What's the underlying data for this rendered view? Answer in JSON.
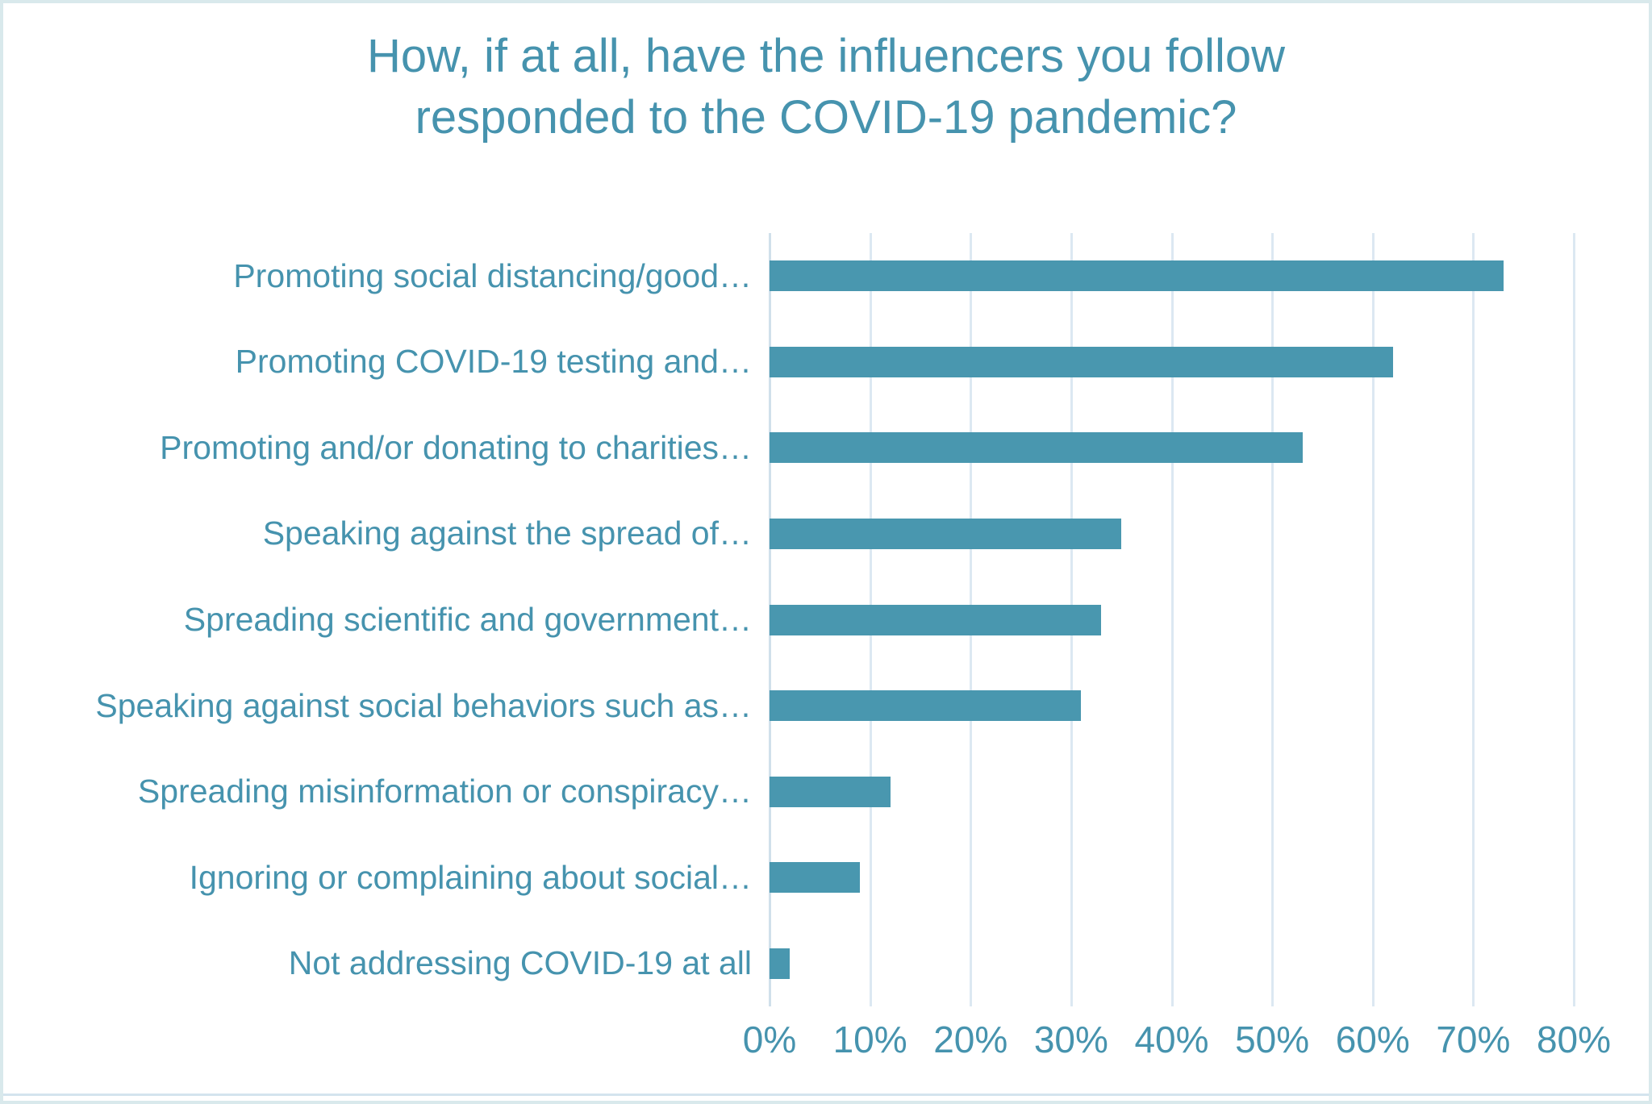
{
  "title": {
    "line1": "How, if at all, have the influencers you follow",
    "line2": "responded to the COVID-19 pandemic?"
  },
  "chart_data": {
    "type": "bar",
    "orientation": "horizontal",
    "title": "How, if at all, have the influencers you follow responded to the COVID-19 pandemic?",
    "categories": [
      "Promoting social distancing/good…",
      "Promoting COVID-19 testing and…",
      "Promoting and/or donating to charities…",
      "Speaking against the spread of…",
      "Spreading scientific and government…",
      "Speaking against social behaviors such as…",
      "Spreading misinformation or conspiracy…",
      "Ignoring or complaining about social…",
      "Not addressing COVID-19 at all"
    ],
    "values": [
      73,
      62,
      53,
      35,
      33,
      31,
      12,
      9,
      2
    ],
    "unit": "%",
    "xlabel": "",
    "ylabel": "",
    "xlim": [
      0,
      80
    ],
    "x_ticks": [
      "0%",
      "10%",
      "20%",
      "30%",
      "40%",
      "50%",
      "60%",
      "70%",
      "80%"
    ],
    "grid": "vertical-only",
    "legend": false
  },
  "colors": {
    "bar": "#4997af",
    "text": "#4693ae",
    "gridline": "#dce8f2",
    "border": "#d9e9ec",
    "background": "#ffffff"
  }
}
